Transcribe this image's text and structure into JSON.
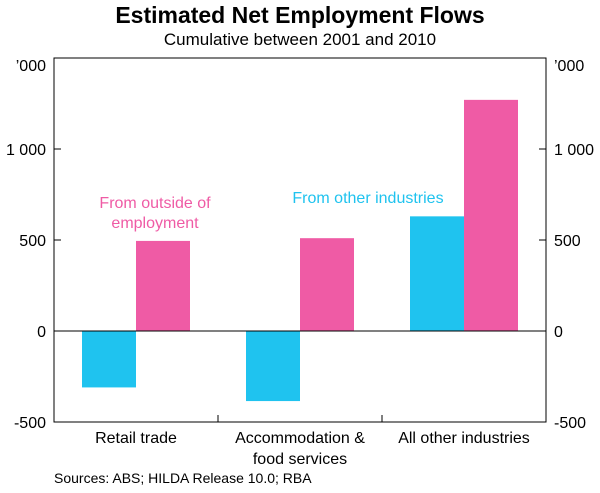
{
  "title": "Estimated Net Employment Flows",
  "subtitle": "Cumulative between 2001 and 2010",
  "source": "Sources: ABS; HILDA Release 10.0; RBA",
  "colors": {
    "other_industries": "#1fc3ef",
    "outside_employment": "#ef5ba5",
    "frame": "#000000"
  },
  "chart_data": {
    "type": "bar",
    "title": "Estimated Net Employment Flows",
    "subtitle": "Cumulative between 2001 and 2010",
    "unit_label": "’000",
    "categories": [
      [
        "Retail trade"
      ],
      [
        "Accommodation &",
        "food services"
      ],
      [
        "All other industries"
      ]
    ],
    "series": [
      {
        "name": "From other industries",
        "label_lines": [
          "From other industries"
        ],
        "values": [
          -310,
          -385,
          630
        ]
      },
      {
        "name": "From outside of employment",
        "label_lines": [
          "From outside of",
          "employment"
        ],
        "values": [
          495,
          510,
          1270
        ]
      }
    ],
    "ylim": [
      -500,
      1500
    ],
    "yticks": [
      -500,
      0,
      500,
      1000
    ],
    "ytick_labels": [
      "-500",
      "0",
      "500",
      "1 000"
    ],
    "grid": false,
    "secondary_axis": true
  }
}
